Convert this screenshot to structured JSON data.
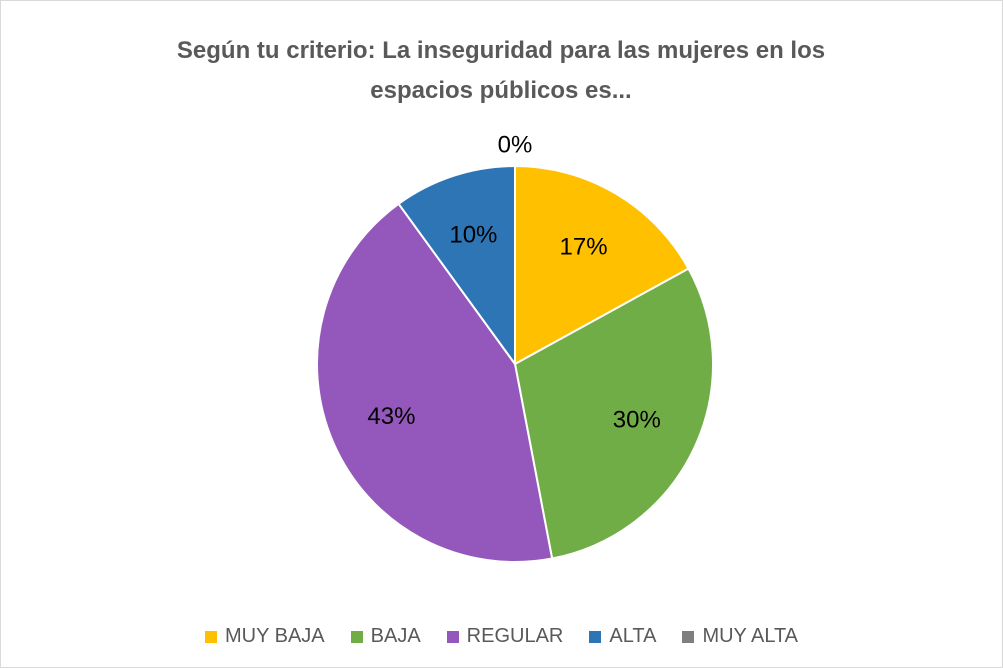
{
  "chart_data": {
    "type": "pie",
    "title": "Según tu criterio: La inseguridad para las mujeres en los espacios públicos es...",
    "categories": [
      "MUY BAJA",
      "BAJA",
      "REGULAR",
      "ALTA",
      "MUY ALTA"
    ],
    "values": [
      17,
      30,
      43,
      10,
      0
    ],
    "value_labels": [
      "17%",
      "30%",
      "43%",
      "10%",
      "0%"
    ],
    "colors": [
      "#FFC000",
      "#70AD47",
      "#9457BB",
      "#2E75B6",
      "#7F7F7F"
    ],
    "legend": "bottom"
  }
}
